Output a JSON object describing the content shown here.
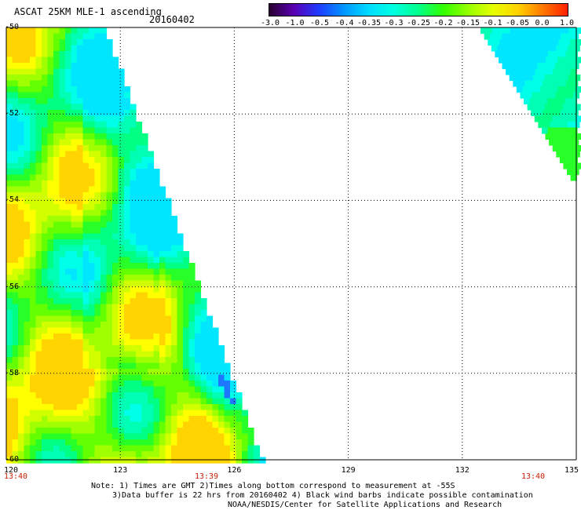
{
  "header": {
    "title": "ASCAT 25KM MLE-1 ascending",
    "date": "20160402"
  },
  "colorbar": {
    "labels": [
      "-3.0",
      "-1.0",
      "-0.5",
      "-0.4",
      "-0.35",
      "-0.3",
      "-0.25",
      "-0.2",
      "-0.15",
      "-0.1",
      "-0.05",
      "0.0",
      "1.0"
    ],
    "colors": [
      "#2a0030",
      "#5a00b4",
      "#1e3cff",
      "#0096ff",
      "#00dcff",
      "#00ffe0",
      "#00ff8c",
      "#32ff00",
      "#96ff00",
      "#e6ff00",
      "#ffd200",
      "#ff7800",
      "#ff1e00"
    ]
  },
  "map": {
    "lat_labels": [
      "-50",
      "-52",
      "-54",
      "-56",
      "-58",
      "-60"
    ],
    "lon_labels": [
      "120",
      "123",
      "126",
      "129",
      "132",
      "135"
    ],
    "time_labels": [
      "13:40",
      "13:39",
      "13:40"
    ],
    "lat_range": [
      -60,
      -50
    ],
    "lon_range": [
      120,
      135
    ],
    "grid_color": "#000000",
    "no_data_color": "#ffffff"
  },
  "notes": {
    "line1": "Note: 1) Times are GMT 2)Times along bottom correspond to measurement at -55S",
    "line2": "3)Data buffer is 22 hrs from 20160402 4) Black wind barbs indicate possible contamination",
    "line3": "NOAA/NESDIS/Center for Satellite Applications and Research"
  }
}
